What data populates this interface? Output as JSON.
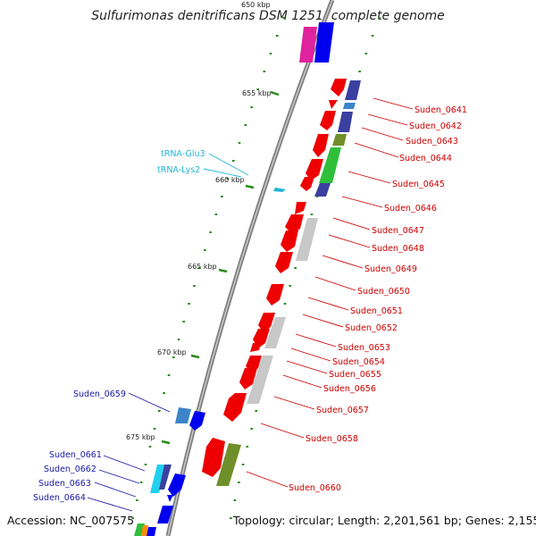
{
  "title": "Sulfurimonas denitrificans DSM 1251, complete genome",
  "footer": {
    "accession": "Accession: NC_007575",
    "topology": "Topology: circular; Length: 2,201,561 bp; Genes: 2,155"
  },
  "ticks": [
    "650 kbp",
    "655 kbp",
    "660 kbp",
    "665 kbp",
    "670 kbp",
    "675 kbp"
  ],
  "gene_labels_right": [
    "Suden_0641",
    "Suden_0642",
    "Suden_0643",
    "Suden_0644",
    "Suden_0645",
    "Suden_0646",
    "Suden_0647",
    "Suden_0648",
    "Suden_0649",
    "Suden_0650",
    "Suden_0651",
    "Suden_0652",
    "Suden_0653",
    "Suden_0654",
    "Suden_0655",
    "Suden_0656",
    "Suden_0657",
    "Suden_0658",
    "Suden_0660"
  ],
  "gene_labels_left": [
    "Suden_0659",
    "Suden_0661",
    "Suden_0662",
    "Suden_0663",
    "Suden_0664"
  ],
  "trna_labels": [
    "tRNA-Glu3",
    "tRNA-Lys2"
  ],
  "colors": {
    "backbone": "#8a8a8a",
    "forward_gene": "#ee0000",
    "reverse_gene": "#0a00ee",
    "trna": "#22b5d8",
    "tick": "#2a8a1a",
    "label_red": "#cc0000",
    "label_blue": "#1a1aa6"
  }
}
